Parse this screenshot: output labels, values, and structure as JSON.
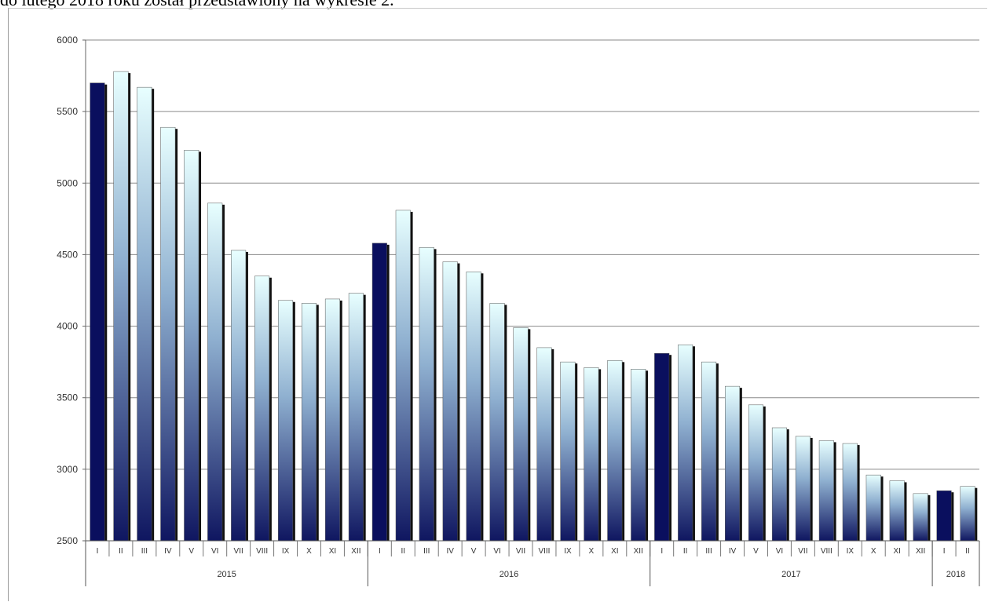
{
  "top_text": "do lutego 2018 roku został przedstawiony na wykresie 2.",
  "colors": {
    "january_bar": "#0a0f5e",
    "bar_top": "#e8ffff",
    "bar_mid": "#8fb0d0",
    "bar_bottom": "#0f1660",
    "gridline": "#8a8a8a"
  },
  "chart_data": {
    "type": "bar",
    "title": "",
    "xlabel": "",
    "ylabel": "",
    "ylim": [
      2500,
      6000
    ],
    "yticks": [
      "2500",
      "3000",
      "3500",
      "4000",
      "4500",
      "5000",
      "5500",
      "6000"
    ],
    "grid": true,
    "legend": "none",
    "categories": [
      "I",
      "II",
      "III",
      "IV",
      "V",
      "VI",
      "VII",
      "VIII",
      "IX",
      "X",
      "XI",
      "XII",
      "I",
      "II",
      "III",
      "IV",
      "V",
      "VI",
      "VII",
      "VIII",
      "IX",
      "X",
      "XI",
      "XII",
      "I",
      "II",
      "III",
      "IV",
      "V",
      "VI",
      "VII",
      "VIII",
      "IX",
      "X",
      "XI",
      "XII",
      "I",
      "II"
    ],
    "years": [
      {
        "label": "2015",
        "count": 12
      },
      {
        "label": "2016",
        "count": 12
      },
      {
        "label": "2017",
        "count": 12
      },
      {
        "label": "2018",
        "count": 2
      }
    ],
    "values": [
      5700,
      5780,
      5670,
      5390,
      5230,
      4860,
      4530,
      4350,
      4180,
      4160,
      4190,
      4230,
      4580,
      4810,
      4550,
      4450,
      4380,
      4160,
      3990,
      3850,
      3750,
      3710,
      3760,
      3700,
      3810,
      3870,
      3750,
      3580,
      3450,
      3290,
      3230,
      3200,
      3180,
      2960,
      2920,
      2830,
      2850,
      2880
    ]
  }
}
